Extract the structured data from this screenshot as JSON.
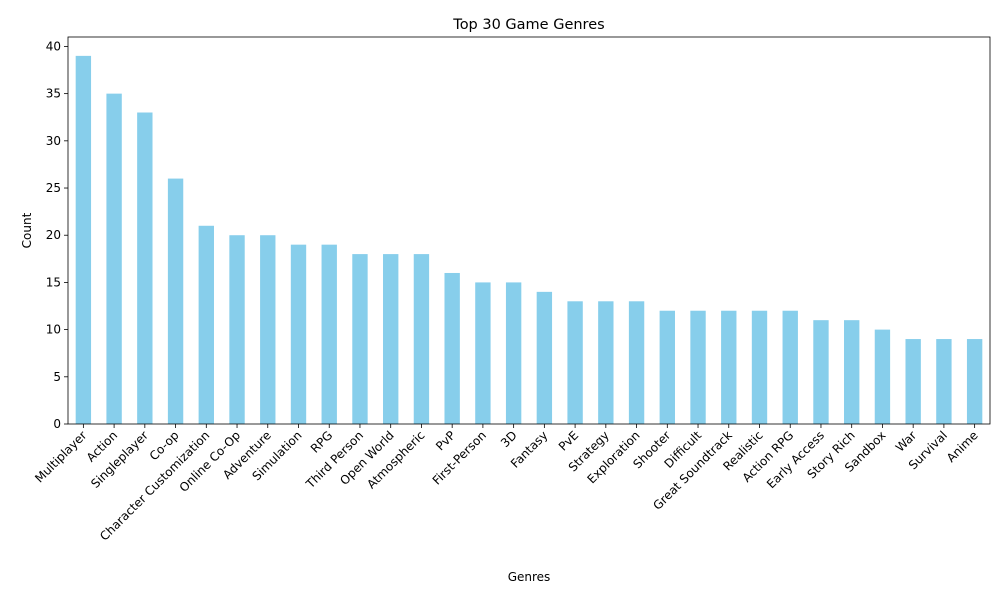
{
  "chart_data": {
    "type": "bar",
    "title": "Top 30 Game Genres",
    "xlabel": "Genres",
    "ylabel": "Count",
    "ylim": [
      0,
      41
    ],
    "yticks": [
      0,
      5,
      10,
      15,
      20,
      25,
      30,
      35,
      40
    ],
    "bar_color": "#87ceeb",
    "grid": false,
    "categories": [
      "Multiplayer",
      "Action",
      "Singleplayer",
      "Co-op",
      "Character Customization",
      "Online Co-Op",
      "Adventure",
      "Simulation",
      "RPG",
      "Third Person",
      "Open World",
      "Atmospheric",
      "PvP",
      "First-Person",
      "3D",
      "Fantasy",
      "PvE",
      "Strategy",
      "Exploration",
      "Shooter",
      "Difficult",
      "Great Soundtrack",
      "Realistic",
      "Action RPG",
      "Early Access",
      "Story Rich",
      "Sandbox",
      "War",
      "Survival",
      "Anime"
    ],
    "values": [
      39,
      35,
      33,
      26,
      21,
      20,
      20,
      19,
      19,
      18,
      18,
      18,
      16,
      15,
      15,
      14,
      13,
      13,
      13,
      12,
      12,
      12,
      12,
      12,
      11,
      11,
      10,
      9,
      9,
      9
    ]
  }
}
